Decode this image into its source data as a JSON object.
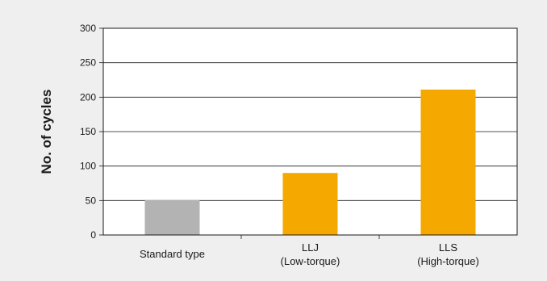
{
  "chart_data": {
    "type": "bar",
    "title": "",
    "xlabel": "",
    "ylabel": "No. of cycles",
    "ylim": [
      0,
      300
    ],
    "yticks": [
      0,
      50,
      100,
      150,
      200,
      250,
      300
    ],
    "grid": true,
    "categories": [
      [
        "Standard type"
      ],
      [
        "LLJ",
        "(Low-torque)"
      ],
      [
        "LLS",
        "(High-torque)"
      ]
    ],
    "values": [
      51,
      90,
      211
    ],
    "colors": [
      "#b3b3b3",
      "#f5a800",
      "#f5a800"
    ],
    "gridline_color": "#1a1a1a",
    "plot_background": "#ffffff"
  }
}
